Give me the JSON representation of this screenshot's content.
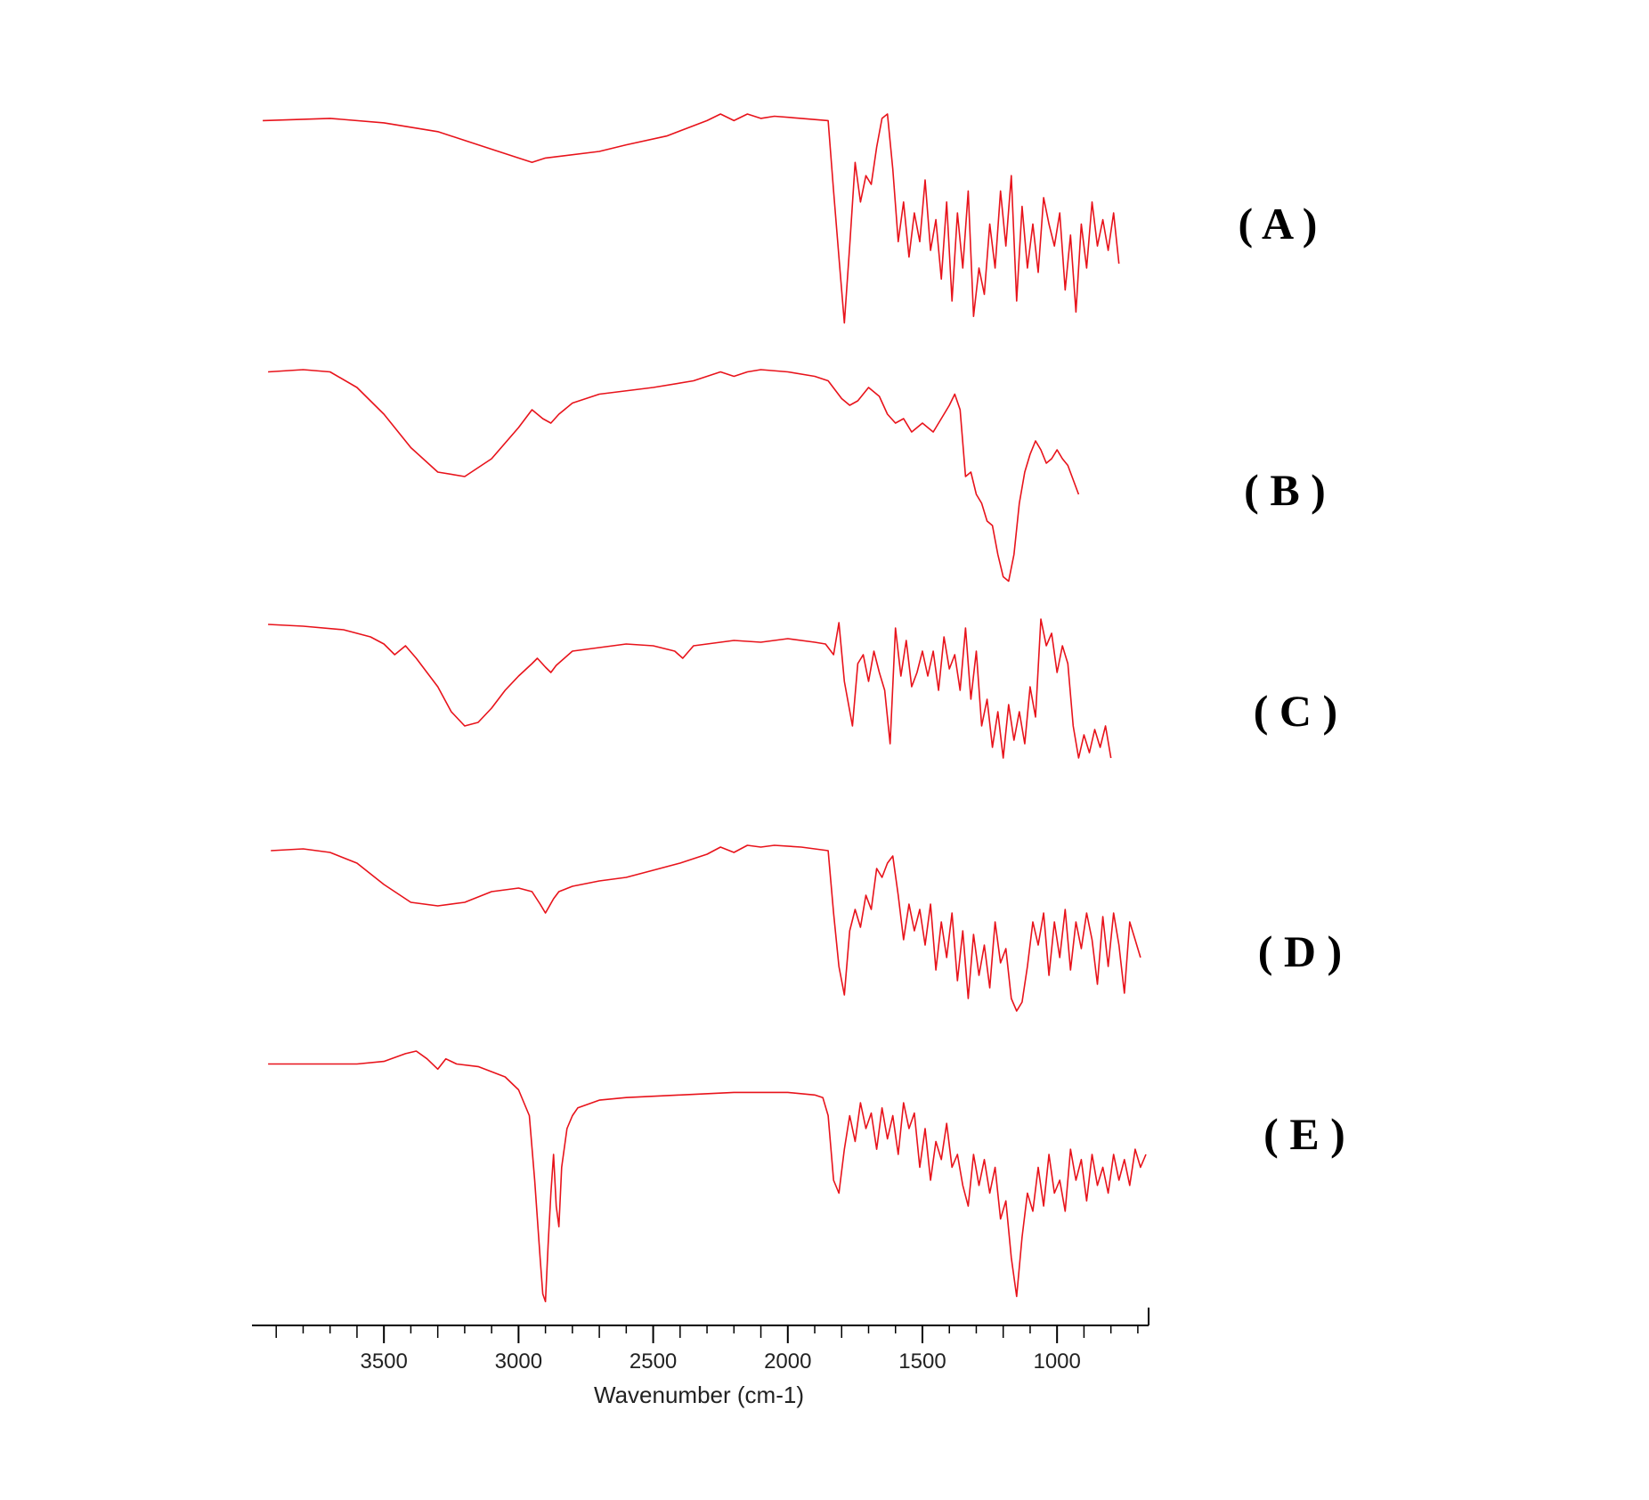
{
  "chart_data": {
    "type": "line",
    "title": "",
    "xlabel": "Wavenumber (cm-1)",
    "ylabel": "",
    "xlim": [
      3990,
      660
    ],
    "x_ticks": [
      3500,
      3000,
      2500,
      2000,
      1500,
      1000
    ],
    "x_tick_labels": [
      "3500",
      "3000",
      "2500",
      "2000",
      "1500",
      "1000"
    ],
    "grid": false,
    "line_color": "#e8131b",
    "panel_labels": [
      "( A )",
      "( B )",
      "( C )",
      "( D )",
      "( E )"
    ],
    "series": [
      {
        "label": "( A )",
        "x": [
          3950,
          3700,
          3500,
          3300,
          3200,
          3100,
          3000,
          2950,
          2900,
          2700,
          2600,
          2450,
          2300,
          2250,
          2200,
          2150,
          2100,
          2050,
          1950,
          1850,
          1830,
          1810,
          1790,
          1770,
          1750,
          1730,
          1710,
          1690,
          1670,
          1650,
          1630,
          1610,
          1590,
          1570,
          1550,
          1530,
          1510,
          1490,
          1470,
          1450,
          1430,
          1410,
          1390,
          1370,
          1350,
          1330,
          1310,
          1290,
          1270,
          1250,
          1230,
          1210,
          1190,
          1170,
          1150,
          1130,
          1110,
          1090,
          1070,
          1050,
          1030,
          1010,
          990,
          970,
          950,
          930,
          910,
          890,
          870,
          850,
          830,
          810,
          790,
          770
        ],
        "y": [
          0.97,
          0.98,
          0.96,
          0.92,
          0.88,
          0.84,
          0.8,
          0.78,
          0.8,
          0.83,
          0.86,
          0.9,
          0.97,
          1.0,
          0.97,
          1.0,
          0.98,
          0.99,
          0.98,
          0.97,
          0.65,
          0.35,
          0.05,
          0.4,
          0.78,
          0.6,
          0.72,
          0.68,
          0.85,
          0.98,
          1.0,
          0.75,
          0.42,
          0.6,
          0.35,
          0.55,
          0.42,
          0.7,
          0.38,
          0.52,
          0.25,
          0.6,
          0.15,
          0.55,
          0.3,
          0.65,
          0.08,
          0.3,
          0.18,
          0.5,
          0.3,
          0.65,
          0.4,
          0.72,
          0.15,
          0.58,
          0.3,
          0.5,
          0.28,
          0.62,
          0.5,
          0.4,
          0.55,
          0.2,
          0.45,
          0.1,
          0.5,
          0.3,
          0.6,
          0.4,
          0.52,
          0.38,
          0.55,
          0.32
        ]
      },
      {
        "label": "( B )",
        "x": [
          3930,
          3800,
          3700,
          3600,
          3500,
          3400,
          3300,
          3200,
          3100,
          3000,
          2950,
          2910,
          2880,
          2850,
          2800,
          2700,
          2500,
          2350,
          2250,
          2200,
          2150,
          2100,
          2000,
          1900,
          1850,
          1800,
          1770,
          1740,
          1700,
          1660,
          1630,
          1600,
          1570,
          1540,
          1500,
          1460,
          1420,
          1400,
          1380,
          1360,
          1340,
          1320,
          1300,
          1280,
          1260,
          1240,
          1220,
          1200,
          1180,
          1160,
          1140,
          1120,
          1100,
          1080,
          1060,
          1040,
          1020,
          1000,
          980,
          960,
          920
        ],
        "y": [
          0.97,
          0.98,
          0.97,
          0.9,
          0.78,
          0.63,
          0.52,
          0.5,
          0.58,
          0.72,
          0.8,
          0.76,
          0.74,
          0.78,
          0.83,
          0.87,
          0.9,
          0.93,
          0.97,
          0.95,
          0.97,
          0.98,
          0.97,
          0.95,
          0.93,
          0.85,
          0.82,
          0.84,
          0.9,
          0.86,
          0.78,
          0.74,
          0.76,
          0.7,
          0.74,
          0.7,
          0.78,
          0.82,
          0.87,
          0.8,
          0.5,
          0.52,
          0.42,
          0.38,
          0.3,
          0.28,
          0.15,
          0.05,
          0.03,
          0.15,
          0.38,
          0.52,
          0.6,
          0.66,
          0.62,
          0.56,
          0.58,
          0.62,
          0.58,
          0.55,
          0.42
        ]
      },
      {
        "label": "( C )",
        "x": [
          3930,
          3800,
          3650,
          3550,
          3500,
          3460,
          3420,
          3380,
          3300,
          3250,
          3200,
          3150,
          3100,
          3050,
          3000,
          2950,
          2930,
          2900,
          2880,
          2860,
          2800,
          2700,
          2600,
          2500,
          2420,
          2390,
          2350,
          2300,
          2200,
          2100,
          2000,
          1900,
          1860,
          1830,
          1810,
          1790,
          1760,
          1740,
          1720,
          1700,
          1680,
          1660,
          1640,
          1620,
          1600,
          1580,
          1560,
          1540,
          1520,
          1500,
          1480,
          1460,
          1440,
          1420,
          1400,
          1380,
          1360,
          1340,
          1320,
          1300,
          1280,
          1260,
          1240,
          1220,
          1200,
          1180,
          1160,
          1140,
          1120,
          1100,
          1080,
          1060,
          1040,
          1020,
          1000,
          980,
          960,
          940,
          920,
          900,
          880,
          860,
          840,
          820,
          800
        ],
        "y": [
          0.87,
          0.86,
          0.84,
          0.8,
          0.76,
          0.7,
          0.75,
          0.68,
          0.52,
          0.38,
          0.3,
          0.32,
          0.4,
          0.5,
          0.58,
          0.65,
          0.68,
          0.63,
          0.6,
          0.64,
          0.72,
          0.74,
          0.76,
          0.75,
          0.72,
          0.68,
          0.75,
          0.76,
          0.78,
          0.77,
          0.79,
          0.77,
          0.76,
          0.7,
          0.88,
          0.55,
          0.3,
          0.65,
          0.7,
          0.55,
          0.72,
          0.6,
          0.5,
          0.2,
          0.85,
          0.58,
          0.78,
          0.52,
          0.6,
          0.72,
          0.58,
          0.72,
          0.5,
          0.8,
          0.62,
          0.7,
          0.5,
          0.85,
          0.45,
          0.72,
          0.3,
          0.45,
          0.18,
          0.38,
          0.12,
          0.42,
          0.22,
          0.38,
          0.2,
          0.52,
          0.35,
          0.9,
          0.75,
          0.82,
          0.6,
          0.75,
          0.65,
          0.3,
          0.12,
          0.25,
          0.15,
          0.28,
          0.18,
          0.3,
          0.12
        ]
      },
      {
        "label": "( D )",
        "x": [
          3920,
          3800,
          3700,
          3600,
          3500,
          3400,
          3300,
          3200,
          3100,
          3000,
          2950,
          2920,
          2900,
          2870,
          2850,
          2800,
          2700,
          2600,
          2500,
          2400,
          2300,
          2250,
          2200,
          2150,
          2100,
          2050,
          1950,
          1850,
          1830,
          1810,
          1790,
          1770,
          1750,
          1730,
          1710,
          1690,
          1670,
          1650,
          1630,
          1610,
          1590,
          1570,
          1550,
          1530,
          1510,
          1490,
          1470,
          1450,
          1430,
          1410,
          1390,
          1370,
          1350,
          1330,
          1310,
          1290,
          1270,
          1250,
          1230,
          1210,
          1190,
          1170,
          1150,
          1130,
          1110,
          1090,
          1070,
          1050,
          1030,
          1010,
          990,
          970,
          950,
          930,
          910,
          890,
          870,
          850,
          830,
          810,
          790,
          770,
          750,
          730,
          710,
          690
        ],
        "y": [
          0.95,
          0.96,
          0.94,
          0.88,
          0.76,
          0.66,
          0.64,
          0.66,
          0.72,
          0.74,
          0.72,
          0.65,
          0.6,
          0.68,
          0.72,
          0.75,
          0.78,
          0.8,
          0.84,
          0.88,
          0.93,
          0.97,
          0.94,
          0.98,
          0.97,
          0.98,
          0.97,
          0.95,
          0.6,
          0.3,
          0.14,
          0.5,
          0.62,
          0.52,
          0.7,
          0.62,
          0.85,
          0.8,
          0.88,
          0.92,
          0.7,
          0.45,
          0.65,
          0.5,
          0.62,
          0.42,
          0.65,
          0.28,
          0.55,
          0.35,
          0.6,
          0.22,
          0.5,
          0.12,
          0.48,
          0.25,
          0.42,
          0.18,
          0.55,
          0.32,
          0.4,
          0.12,
          0.05,
          0.1,
          0.3,
          0.55,
          0.42,
          0.6,
          0.25,
          0.55,
          0.35,
          0.62,
          0.28,
          0.55,
          0.4,
          0.6,
          0.45,
          0.2,
          0.58,
          0.3,
          0.6,
          0.42,
          0.15,
          0.55,
          0.45,
          0.35
        ]
      },
      {
        "label": "( E )",
        "x": [
          3930,
          3700,
          3600,
          3500,
          3420,
          3380,
          3340,
          3300,
          3270,
          3230,
          3150,
          3050,
          3000,
          2960,
          2940,
          2920,
          2910,
          2900,
          2890,
          2880,
          2870,
          2860,
          2850,
          2840,
          2820,
          2800,
          2780,
          2700,
          2600,
          2400,
          2200,
          2000,
          1900,
          1870,
          1850,
          1830,
          1810,
          1790,
          1770,
          1750,
          1730,
          1710,
          1690,
          1670,
          1650,
          1630,
          1610,
          1590,
          1570,
          1550,
          1530,
          1510,
          1490,
          1470,
          1450,
          1430,
          1410,
          1390,
          1370,
          1350,
          1330,
          1310,
          1290,
          1270,
          1250,
          1230,
          1210,
          1190,
          1170,
          1150,
          1130,
          1110,
          1090,
          1070,
          1050,
          1030,
          1010,
          990,
          970,
          950,
          930,
          910,
          890,
          870,
          850,
          830,
          810,
          790,
          770,
          750,
          730,
          710,
          690,
          670
        ],
        "y": [
          0.95,
          0.95,
          0.95,
          0.96,
          0.99,
          1.0,
          0.97,
          0.93,
          0.97,
          0.95,
          0.94,
          0.9,
          0.85,
          0.75,
          0.5,
          0.2,
          0.06,
          0.03,
          0.25,
          0.45,
          0.6,
          0.4,
          0.32,
          0.55,
          0.7,
          0.75,
          0.78,
          0.81,
          0.82,
          0.83,
          0.84,
          0.84,
          0.83,
          0.82,
          0.75,
          0.5,
          0.45,
          0.62,
          0.75,
          0.65,
          0.8,
          0.7,
          0.76,
          0.62,
          0.78,
          0.66,
          0.75,
          0.6,
          0.8,
          0.7,
          0.76,
          0.55,
          0.7,
          0.5,
          0.65,
          0.58,
          0.72,
          0.55,
          0.6,
          0.48,
          0.4,
          0.6,
          0.48,
          0.58,
          0.45,
          0.55,
          0.35,
          0.42,
          0.2,
          0.05,
          0.28,
          0.45,
          0.38,
          0.55,
          0.4,
          0.6,
          0.45,
          0.5,
          0.38,
          0.62,
          0.5,
          0.58,
          0.42,
          0.6,
          0.48,
          0.55,
          0.45,
          0.6,
          0.5,
          0.58,
          0.48,
          0.62,
          0.55,
          0.6
        ]
      }
    ]
  }
}
